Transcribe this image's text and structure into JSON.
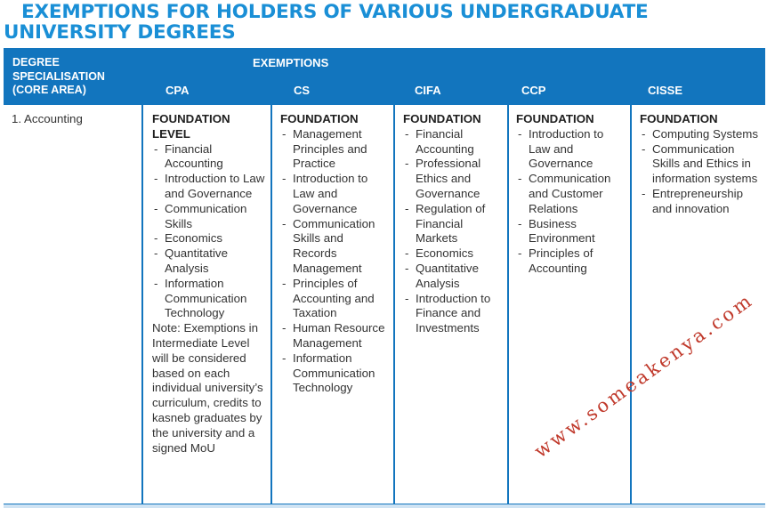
{
  "title": {
    "line1": "EXEMPTIONS FOR HOLDERS OF VARIOUS UNDERGRADUATE",
    "line2": "UNIVERSITY DEGREES"
  },
  "header": {
    "spec_line1": "DEGREE",
    "spec_line2": "SPECIALISATION",
    "spec_line3": "(CORE AREA)",
    "exemptions": "EXEMPTIONS",
    "columns": [
      "CPA",
      "CS",
      "CIFA",
      "CCP",
      "CISSE"
    ]
  },
  "row": {
    "label": "1.  Accounting",
    "cpa": {
      "heading1": "FOUNDATION",
      "heading2": "LEVEL",
      "items": [
        "Financial Accounting",
        "Introduction to Law and Governance",
        "Communication Skills",
        "Economics",
        "Quantitative Analysis",
        "Information Communication Technology"
      ],
      "note": "Note: Exemptions in Intermediate Level will be considered based on each individual university’s curriculum, credits to kasneb graduates by the university and a signed MoU"
    },
    "cs": {
      "heading": "FOUNDATION",
      "items": [
        "Management Principles and Practice",
        "Introduction to Law and Governance",
        "Communication Skills and Records Management",
        "Principles of Accounting and Taxation",
        "Human Resource Management",
        "Information Communication Technology"
      ]
    },
    "cifa": {
      "heading": "FOUNDATION",
      "items": [
        "Financial Accounting",
        "Professional Ethics and Governance",
        "Regulation of Financial Markets",
        "Economics",
        "Quantitative Analysis",
        "Introduction to Finance and Investments"
      ]
    },
    "ccp": {
      "heading": "FOUNDATION",
      "items": [
        "Introduction to Law and Governance",
        "Communication and Customer Relations",
        "Business Environment",
        "Principles of Accounting"
      ]
    },
    "cisse": {
      "heading": "FOUNDATION",
      "items": [
        "Computing Systems",
        "Communication Skills and Ethics in information systems",
        "Entrepreneurship and innovation"
      ]
    }
  },
  "watermark": "www.someakenya.com",
  "colors": {
    "title": "#1a8fd6",
    "header_bg": "#1275be",
    "watermark": "#c0392b"
  }
}
